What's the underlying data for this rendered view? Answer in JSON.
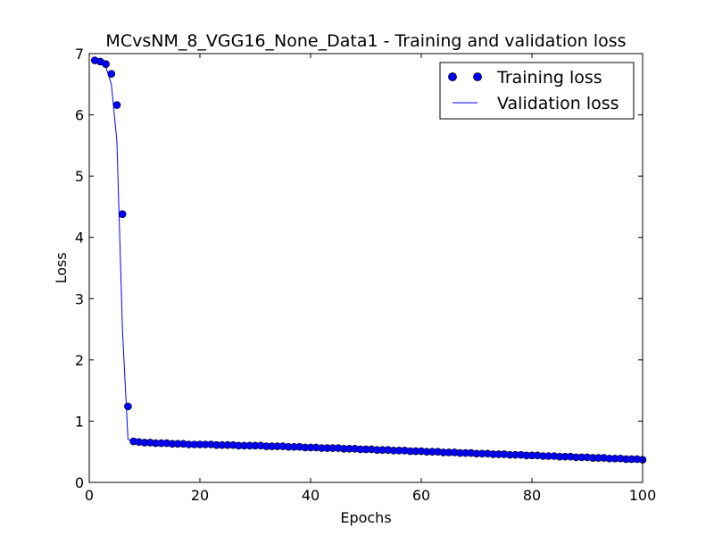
{
  "chart_data": {
    "type": "line",
    "title": "MCvsNM_8_VGG16_None_Data1 - Training and validation loss",
    "xlabel": "Epochs",
    "ylabel": "Loss",
    "xlim": [
      0,
      100
    ],
    "ylim": [
      0,
      7
    ],
    "xticks": [
      0,
      20,
      40,
      60,
      80,
      100
    ],
    "yticks": [
      0,
      1,
      2,
      3,
      4,
      5,
      6,
      7
    ],
    "grid": false,
    "legend_position": "top-right",
    "colors": {
      "series": "#0000ff"
    },
    "series": [
      {
        "name": "Training loss",
        "style": "markers",
        "x": [
          1,
          2,
          3,
          4,
          5,
          6,
          7,
          8,
          9,
          10,
          11,
          12,
          13,
          14,
          15,
          16,
          17,
          18,
          19,
          20,
          21,
          22,
          23,
          24,
          25,
          26,
          27,
          28,
          29,
          30,
          31,
          32,
          33,
          34,
          35,
          36,
          37,
          38,
          39,
          40,
          41,
          42,
          43,
          44,
          45,
          46,
          47,
          48,
          49,
          50,
          51,
          52,
          53,
          54,
          55,
          56,
          57,
          58,
          59,
          60,
          61,
          62,
          63,
          64,
          65,
          66,
          67,
          68,
          69,
          70,
          71,
          72,
          73,
          74,
          75,
          76,
          77,
          78,
          79,
          80,
          81,
          82,
          83,
          84,
          85,
          86,
          87,
          88,
          89,
          90,
          91,
          92,
          93,
          94,
          95,
          96,
          97,
          98,
          99,
          100
        ],
        "values": [
          6.89,
          6.87,
          6.83,
          6.67,
          6.16,
          4.38,
          1.24,
          0.67,
          0.66,
          0.65,
          0.65,
          0.64,
          0.64,
          0.64,
          0.63,
          0.63,
          0.63,
          0.62,
          0.62,
          0.62,
          0.62,
          0.62,
          0.61,
          0.61,
          0.61,
          0.61,
          0.6,
          0.6,
          0.6,
          0.6,
          0.6,
          0.59,
          0.59,
          0.59,
          0.59,
          0.58,
          0.58,
          0.58,
          0.57,
          0.57,
          0.57,
          0.56,
          0.56,
          0.56,
          0.56,
          0.55,
          0.55,
          0.55,
          0.54,
          0.54,
          0.54,
          0.53,
          0.53,
          0.53,
          0.52,
          0.52,
          0.52,
          0.51,
          0.51,
          0.51,
          0.5,
          0.5,
          0.5,
          0.49,
          0.49,
          0.49,
          0.48,
          0.48,
          0.48,
          0.47,
          0.47,
          0.47,
          0.46,
          0.46,
          0.46,
          0.45,
          0.45,
          0.45,
          0.44,
          0.44,
          0.44,
          0.43,
          0.43,
          0.43,
          0.42,
          0.42,
          0.42,
          0.41,
          0.41,
          0.41,
          0.4,
          0.4,
          0.4,
          0.39,
          0.39,
          0.39,
          0.38,
          0.38,
          0.38,
          0.37
        ]
      },
      {
        "name": "Validation loss",
        "style": "line",
        "x": [
          1,
          2,
          3,
          4,
          5,
          6,
          7,
          8,
          9,
          10,
          11,
          12,
          13,
          14,
          15,
          16,
          17,
          18,
          19,
          20,
          21,
          22,
          23,
          24,
          25,
          26,
          27,
          28,
          29,
          30,
          31,
          32,
          33,
          34,
          35,
          36,
          37,
          38,
          39,
          40,
          41,
          42,
          43,
          44,
          45,
          46,
          47,
          48,
          49,
          50,
          51,
          52,
          53,
          54,
          55,
          56,
          57,
          58,
          59,
          60,
          61,
          62,
          63,
          64,
          65,
          66,
          67,
          68,
          69,
          70,
          71,
          72,
          73,
          74,
          75,
          76,
          77,
          78,
          79,
          80,
          81,
          82,
          83,
          84,
          85,
          86,
          87,
          88,
          89,
          90,
          91,
          92,
          93,
          94,
          95,
          96,
          97,
          98,
          99,
          100
        ],
        "values": [
          6.88,
          6.85,
          6.78,
          6.5,
          5.56,
          2.5,
          0.7,
          0.68,
          0.67,
          0.66,
          0.66,
          0.65,
          0.65,
          0.64,
          0.64,
          0.64,
          0.63,
          0.62,
          0.63,
          0.62,
          0.62,
          0.62,
          0.61,
          0.61,
          0.61,
          0.6,
          0.61,
          0.6,
          0.6,
          0.59,
          0.6,
          0.59,
          0.59,
          0.58,
          0.59,
          0.58,
          0.58,
          0.57,
          0.58,
          0.57,
          0.56,
          0.56,
          0.56,
          0.55,
          0.56,
          0.55,
          0.54,
          0.55,
          0.54,
          0.54,
          0.53,
          0.53,
          0.53,
          0.52,
          0.53,
          0.52,
          0.51,
          0.52,
          0.51,
          0.5,
          0.51,
          0.5,
          0.49,
          0.5,
          0.49,
          0.48,
          0.49,
          0.48,
          0.47,
          0.48,
          0.47,
          0.46,
          0.47,
          0.46,
          0.45,
          0.46,
          0.45,
          0.44,
          0.45,
          0.44,
          0.43,
          0.44,
          0.43,
          0.42,
          0.43,
          0.42,
          0.41,
          0.42,
          0.41,
          0.4,
          0.41,
          0.4,
          0.39,
          0.4,
          0.39,
          0.38,
          0.39,
          0.38,
          0.37,
          0.37
        ]
      }
    ]
  }
}
